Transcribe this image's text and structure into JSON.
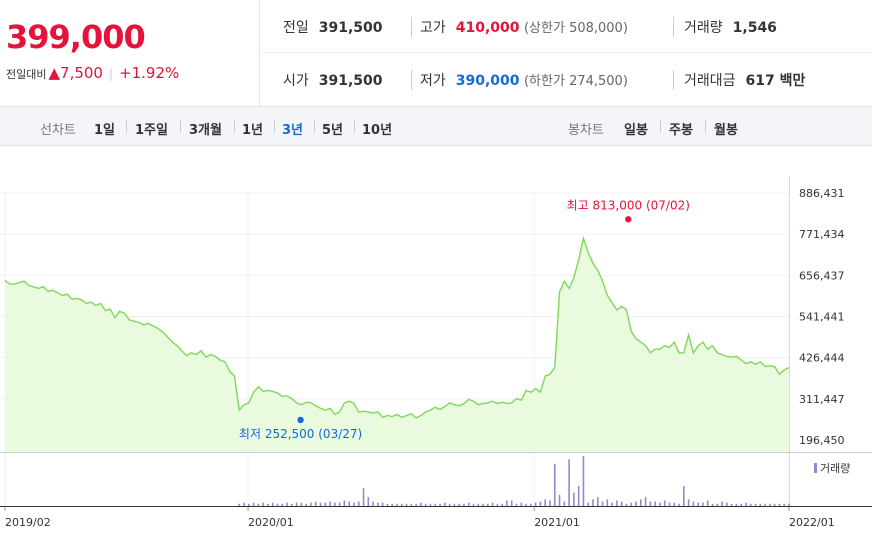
{
  "quote": {
    "price": "399,000",
    "change_label": "전일대비",
    "change_arrow": "▲",
    "change_value": "7,500",
    "change_pct": "+1.92%",
    "prev_close_label": "전일",
    "prev_close": "391,500",
    "open_label": "시가",
    "open": "391,500",
    "high_label": "고가",
    "high": "410,000",
    "upper_limit": "(상한가 508,000)",
    "low_label": "저가",
    "low": "390,000",
    "lower_limit": "(하한가 274,500)",
    "volume_label": "거래량",
    "volume": "1,546",
    "amount_label": "거래대금",
    "amount": "617 백만"
  },
  "line_options": {
    "title": "선차트",
    "items": [
      "1일",
      "1주일",
      "3개월",
      "1년",
      "3년",
      "5년",
      "10년"
    ],
    "selected": "3년"
  },
  "candle_options": {
    "title": "봉차트",
    "items": [
      "일봉",
      "주봉",
      "월봉"
    ]
  },
  "colors": {
    "up": "#e5133a",
    "down": "#1769d8",
    "line": "#7ed957",
    "area": "#e9fadf",
    "volume": "#9a86c8"
  },
  "chart_data": {
    "type": "area",
    "y_ticks": [
      "886,431",
      "771,434",
      "656,437",
      "541,441",
      "426,444",
      "311,447",
      "196,450"
    ],
    "ylim": [
      196450,
      886431
    ],
    "x_ticks": [
      {
        "label": "2019/02",
        "t": 0.0
      },
      {
        "label": "2020/01",
        "t": 0.31
      },
      {
        "label": "2021/01",
        "t": 0.675
      },
      {
        "label": "2022/01",
        "t": 1.0
      }
    ],
    "max_label": "최고 813,000 (07/02)",
    "max_point": {
      "t": 0.795,
      "v": 813000
    },
    "min_label": "최저 252,500 (03/27)",
    "min_point": {
      "t": 0.377,
      "v": 252500
    },
    "volume_label": "거래량",
    "values": [
      642000,
      632000,
      632000,
      636000,
      640000,
      628000,
      624000,
      620000,
      625000,
      612000,
      615000,
      608000,
      600000,
      604000,
      590000,
      592000,
      588000,
      578000,
      582000,
      572000,
      578000,
      558000,
      562000,
      538000,
      556000,
      550000,
      532000,
      528000,
      525000,
      518000,
      522000,
      515000,
      508000,
      498000,
      485000,
      470000,
      460000,
      445000,
      432000,
      440000,
      435000,
      446000,
      428000,
      435000,
      430000,
      420000,
      415000,
      388000,
      375000,
      280000,
      295000,
      300000,
      330000,
      345000,
      332000,
      335000,
      332000,
      328000,
      318000,
      320000,
      312000,
      300000,
      295000,
      302000,
      300000,
      292000,
      285000,
      280000,
      285000,
      268000,
      275000,
      300000,
      305000,
      298000,
      274000,
      277000,
      275000,
      272000,
      275000,
      260000,
      265000,
      262000,
      268000,
      260000,
      265000,
      270000,
      258000,
      265000,
      275000,
      280000,
      288000,
      282000,
      290000,
      300000,
      295000,
      292000,
      298000,
      310000,
      305000,
      295000,
      298000,
      300000,
      305000,
      298000,
      302000,
      298000,
      300000,
      312000,
      308000,
      335000,
      330000,
      340000,
      330000,
      375000,
      380000,
      400000,
      610000,
      640000,
      620000,
      650000,
      700000,
      760000,
      720000,
      690000,
      670000,
      640000,
      600000,
      580000,
      560000,
      570000,
      560000,
      500000,
      480000,
      470000,
      460000,
      440000,
      450000,
      450000,
      460000,
      455000,
      470000,
      440000,
      440000,
      490000,
      440000,
      460000,
      470000,
      450000,
      460000,
      440000,
      435000,
      430000,
      428000,
      430000,
      420000,
      410000,
      415000,
      408000,
      415000,
      402000,
      404000,
      401000,
      380000,
      392000,
      399000
    ],
    "volumes": [
      0,
      0,
      0,
      0,
      0,
      0,
      0,
      0,
      0,
      0,
      0,
      0,
      0,
      0,
      0,
      0,
      0,
      0,
      0,
      0,
      0,
      0,
      0,
      0,
      0,
      0,
      0,
      0,
      0,
      0,
      0,
      0,
      0,
      0,
      0,
      0,
      0,
      0,
      0,
      0,
      0,
      0,
      0,
      0,
      0,
      0,
      0,
      0,
      0,
      2,
      3,
      2,
      3,
      2,
      3,
      2,
      3,
      2,
      2,
      3,
      2,
      3,
      3,
      2,
      3,
      4,
      3,
      3,
      4,
      3,
      3,
      5,
      4,
      3,
      4,
      16,
      8,
      4,
      3,
      3,
      2,
      2,
      2,
      2,
      2,
      2,
      2,
      3,
      2,
      2,
      2,
      2,
      3,
      2,
      2,
      2,
      2,
      3,
      2,
      2,
      2,
      2,
      3,
      2,
      2,
      5,
      5,
      2,
      3,
      2,
      2,
      3,
      4,
      6,
      5,
      38,
      10,
      4,
      42,
      12,
      18,
      45,
      3,
      6,
      8,
      4,
      6,
      3,
      5,
      4,
      2,
      3,
      4,
      6,
      8,
      4,
      4,
      3,
      5,
      3,
      3,
      2,
      18,
      6,
      4,
      3,
      3,
      5,
      2,
      2,
      4,
      3,
      2,
      2,
      2,
      3,
      2,
      2,
      2,
      2,
      2,
      2,
      2,
      2,
      2
    ]
  }
}
